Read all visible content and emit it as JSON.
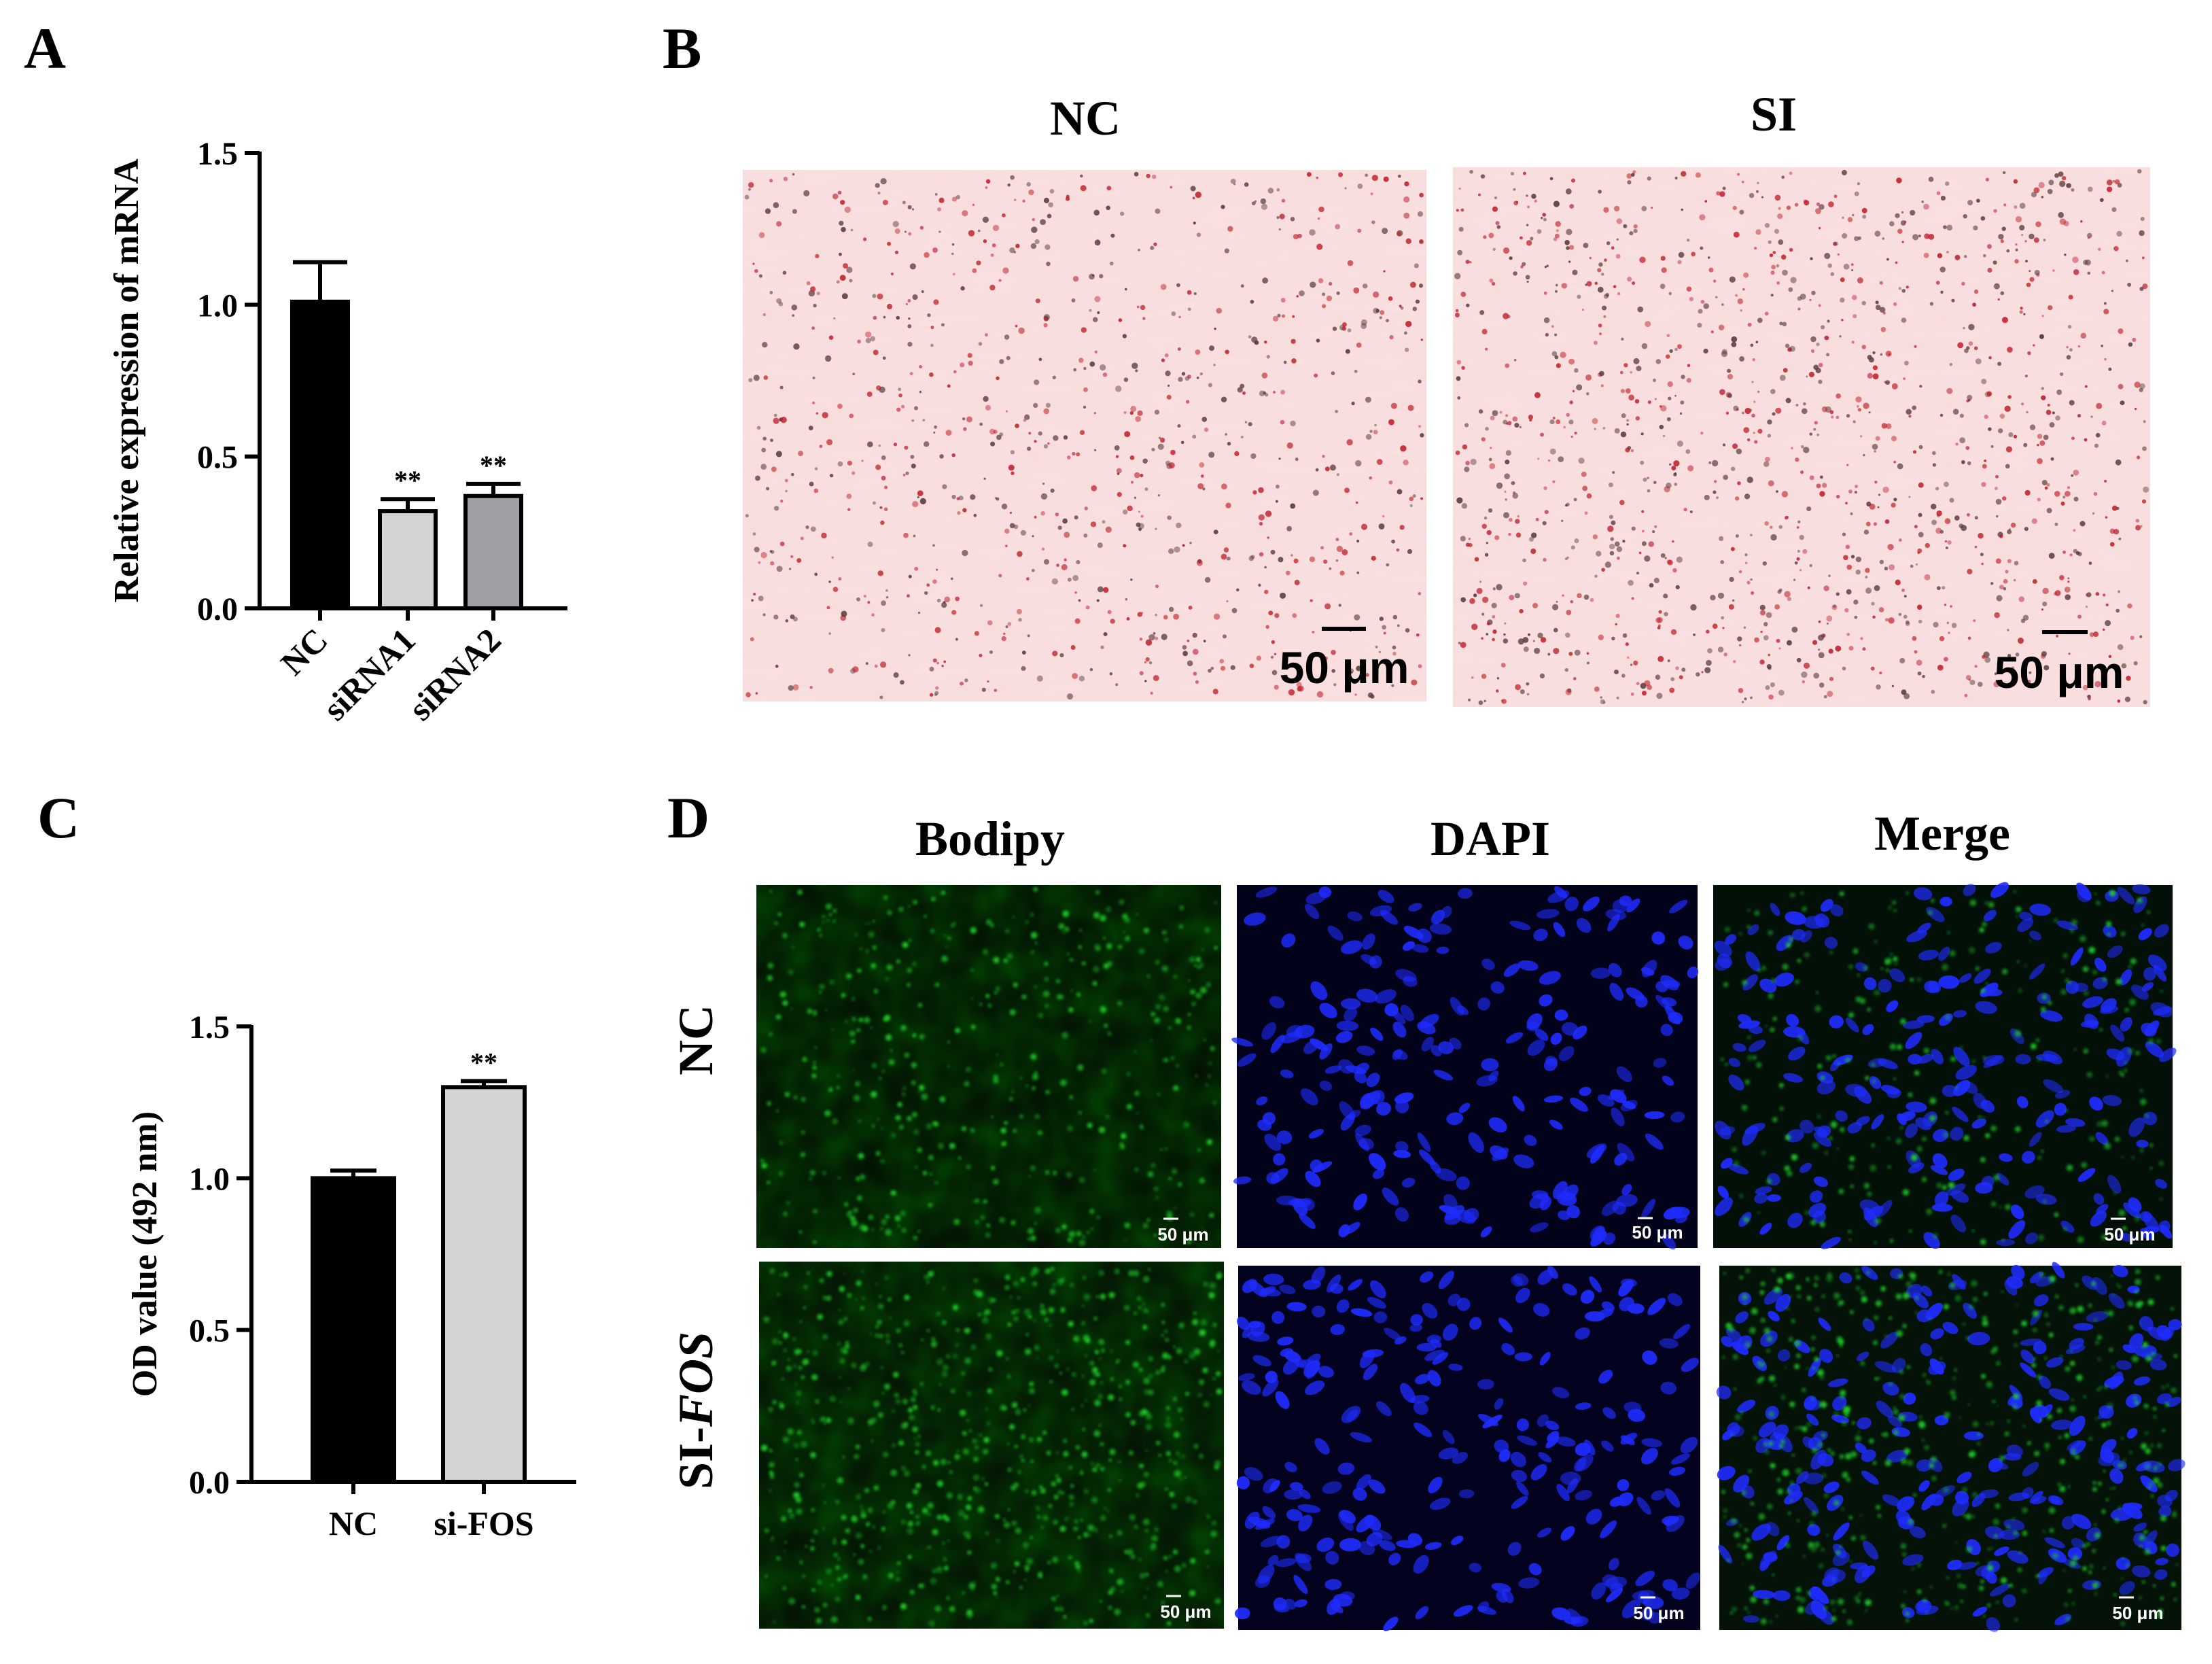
{
  "panels": {
    "a": "A",
    "b": "B",
    "c": "C",
    "d": "D"
  },
  "panel_b": {
    "col_labels": [
      "NC",
      "SI"
    ],
    "scale_text": "50 μm",
    "stain_color": "#c01f2a",
    "background_color": "#f8dcdc"
  },
  "panel_d": {
    "col_labels": [
      "Bodipy",
      "DAPI",
      "Merge"
    ],
    "row_labels": [
      {
        "prefix": "NC",
        "italic": ""
      },
      {
        "prefix": "SI-",
        "italic": "FOS"
      }
    ],
    "scale_text": "50 μm",
    "colors": {
      "bodipy": "#22d12a",
      "dapi": "#1f2cff"
    }
  },
  "chart_data": [
    {
      "type": "bar",
      "panel": "A",
      "categories": [
        "NC",
        "siRNA1",
        "siRNA2"
      ],
      "values": [
        1.01,
        0.32,
        0.37
      ],
      "errors": [
        0.13,
        0.04,
        0.04
      ],
      "significance": [
        "",
        "**",
        "**"
      ],
      "colors": [
        "#000000",
        "#d4d4d4",
        "#a0a0a4"
      ],
      "title": "",
      "xlabel": "",
      "ylabel": "Relative expression of mRNA",
      "ylim": [
        0,
        1.5
      ],
      "yticks": [
        "0.0",
        "0.5",
        "1.0",
        "1.5"
      ],
      "grid": false
    },
    {
      "type": "bar",
      "panel": "C",
      "categories": [
        "NC",
        "si-FOS"
      ],
      "values": [
        1.0,
        1.3
      ],
      "errors": [
        0.025,
        0.02
      ],
      "significance": [
        "",
        "**"
      ],
      "colors": [
        "#000000",
        "#d4d4d4"
      ],
      "title": "",
      "xlabel": "",
      "ylabel": "OD value (492 nm)",
      "ylim": [
        0,
        1.5
      ],
      "yticks": [
        "0.0",
        "0.5",
        "1.0",
        "1.5"
      ],
      "grid": false
    }
  ]
}
